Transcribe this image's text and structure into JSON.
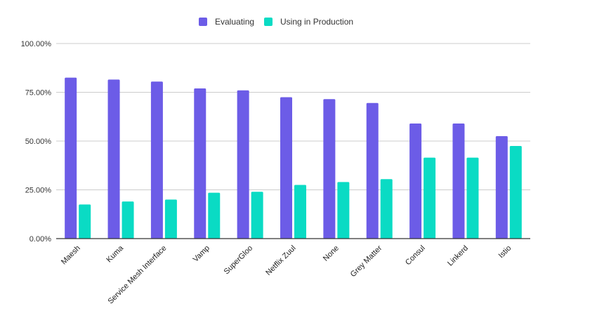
{
  "chart_data": {
    "type": "bar",
    "title": "",
    "xlabel": "",
    "ylabel": "",
    "categories": [
      "Maesh",
      "Kuma",
      "Service Mesh Interface",
      "Vamp",
      "SuperGloo",
      "Netflix Zuul",
      "None",
      "Grey Matter",
      "Consul",
      "Linkerd",
      "Istio"
    ],
    "series": [
      {
        "name": "Evaluating",
        "color": "#6c5ce7",
        "values": [
          82.5,
          81.5,
          80.5,
          77,
          76,
          72.5,
          71.5,
          69.5,
          59,
          59,
          52.5
        ]
      },
      {
        "name": "Using in Production",
        "color": "#0adbc4",
        "values": [
          17.5,
          19,
          20,
          23.5,
          24,
          27.5,
          29,
          30.5,
          41.5,
          41.5,
          47.5
        ]
      }
    ],
    "ylim": [
      0,
      100
    ],
    "yticks": [
      0,
      25,
      50,
      75,
      100
    ],
    "ytick_labels": [
      "0.00%",
      "25.00%",
      "50.00%",
      "75.00%",
      "100.00%"
    ],
    "grid": true,
    "legend_position": "top-center"
  }
}
